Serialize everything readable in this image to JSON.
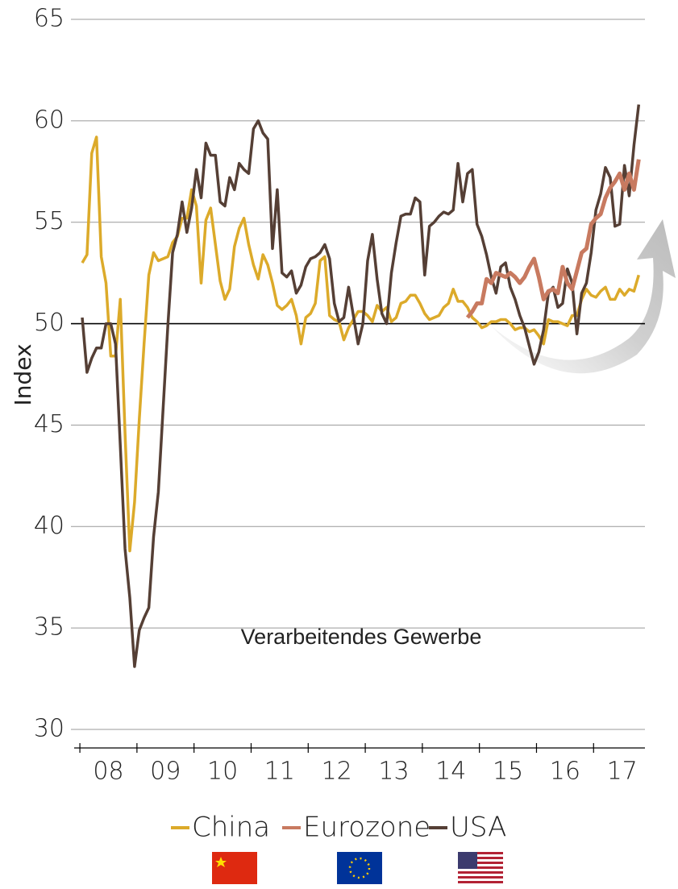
{
  "chart_data": {
    "type": "line",
    "y_label": "Index",
    "annotation": "Verarbeitendes Gewerbe",
    "x": [
      0,
      1,
      2,
      3,
      4,
      5,
      6,
      7,
      8,
      9,
      10,
      11,
      12,
      13,
      14,
      15,
      16,
      17,
      18,
      19,
      20,
      21,
      22,
      23,
      24,
      25,
      26,
      27,
      28,
      29,
      30,
      31,
      32,
      33,
      34,
      35,
      36,
      37,
      38,
      39,
      40,
      41,
      42,
      43,
      44,
      45,
      46,
      47,
      48,
      49,
      50,
      51,
      52,
      53,
      54,
      55,
      56,
      57,
      58,
      59,
      60,
      61,
      62,
      63,
      64,
      65,
      66,
      67,
      68,
      69,
      70,
      71,
      72,
      73,
      74,
      75,
      76,
      77,
      78,
      79,
      80,
      81,
      82,
      83,
      84,
      85,
      86,
      87,
      88,
      89,
      90,
      91,
      92,
      93,
      94,
      95,
      96,
      97,
      98,
      99,
      100,
      101,
      102,
      103,
      104,
      105,
      106,
      107,
      108,
      109,
      110,
      111,
      112,
      113,
      114,
      115,
      116,
      117
    ],
    "xlim": [
      -1.7,
      118.3
    ],
    "xticks": [
      -0.5,
      11.5,
      23.5,
      35.5,
      47.5,
      59.5,
      71.5,
      83.5,
      95.5,
      107.5
    ],
    "xtick_labels": [
      {
        "value": 5.5,
        "label": "08"
      },
      {
        "value": 17.5,
        "label": "09"
      },
      {
        "value": 29.5,
        "label": "10"
      },
      {
        "value": 41.5,
        "label": "11"
      },
      {
        "value": 53.5,
        "label": "12"
      },
      {
        "value": 65.5,
        "label": "13"
      },
      {
        "value": 77.5,
        "label": "14"
      },
      {
        "value": 89.5,
        "label": "15"
      },
      {
        "value": 101.5,
        "label": "16"
      },
      {
        "value": 113.5,
        "label": "17"
      }
    ],
    "ylim": [
      30,
      65
    ],
    "yticks": [
      30,
      35,
      40,
      45,
      50,
      55,
      60,
      65
    ],
    "grid": true,
    "reference_line": 50,
    "series": [
      {
        "name": "China",
        "color": "#dcaa2a",
        "values": [
          53.0,
          53.4,
          58.4,
          59.2,
          53.3,
          52.0,
          48.4,
          48.4,
          51.2,
          44.6,
          38.8,
          41.2,
          45.3,
          49.0,
          52.4,
          53.5,
          53.1,
          53.2,
          53.3,
          54.0,
          54.3,
          55.2,
          55.2,
          56.6,
          55.8,
          52.0,
          55.1,
          55.7,
          53.9,
          52.1,
          51.2,
          51.7,
          53.8,
          54.7,
          55.2,
          53.9,
          52.9,
          52.2,
          53.4,
          52.9,
          52.0,
          50.9,
          50.7,
          50.9,
          51.2,
          50.4,
          49.0,
          50.3,
          50.5,
          51.0,
          53.1,
          53.3,
          50.4,
          50.2,
          50.1,
          49.2,
          49.8,
          50.2,
          50.6,
          50.6,
          50.4,
          50.1,
          50.9,
          50.6,
          50.8,
          50.1,
          50.3,
          51.0,
          51.1,
          51.4,
          51.4,
          51.0,
          50.5,
          50.2,
          50.3,
          50.4,
          50.8,
          51.0,
          51.7,
          51.1,
          51.1,
          50.8,
          50.3,
          50.1,
          49.8,
          49.9,
          50.1,
          50.1,
          50.2,
          50.2,
          50.0,
          49.7,
          49.8,
          49.8,
          49.6,
          49.7,
          49.4,
          49.0,
          50.2,
          50.1,
          50.1,
          50.0,
          49.9,
          50.4,
          50.4,
          51.2,
          51.7,
          51.4,
          51.3,
          51.6,
          51.8,
          51.2,
          51.2,
          51.7,
          51.4,
          51.7,
          51.6,
          52.4
        ]
      },
      {
        "name": "Eurozone",
        "color": "#c87a60",
        "values": [
          null,
          null,
          null,
          null,
          null,
          null,
          null,
          null,
          null,
          null,
          null,
          null,
          null,
          null,
          null,
          null,
          null,
          null,
          null,
          null,
          null,
          null,
          null,
          null,
          null,
          null,
          null,
          null,
          null,
          null,
          null,
          null,
          null,
          null,
          null,
          null,
          null,
          null,
          null,
          null,
          null,
          null,
          null,
          null,
          null,
          null,
          null,
          null,
          null,
          null,
          null,
          null,
          null,
          null,
          null,
          null,
          null,
          null,
          null,
          null,
          null,
          null,
          null,
          null,
          null,
          null,
          null,
          null,
          null,
          null,
          null,
          null,
          null,
          null,
          null,
          null,
          null,
          null,
          null,
          null,
          null,
          50.3,
          50.6,
          51.0,
          51.0,
          52.2,
          52.0,
          52.5,
          52.4,
          52.3,
          52.5,
          52.3,
          52.0,
          52.3,
          52.8,
          53.2,
          52.3,
          51.2,
          51.6,
          51.7,
          51.5,
          52.8,
          52.0,
          51.7,
          52.6,
          53.5,
          53.7,
          54.9,
          55.2,
          55.4,
          56.2,
          56.7,
          57.0,
          57.4,
          56.6,
          57.4,
          56.6,
          58.1
        ]
      },
      {
        "name": "USA",
        "color": "#553f35",
        "values": [
          50.3,
          47.6,
          48.3,
          48.8,
          48.8,
          50.0,
          50.0,
          49.0,
          44.0,
          38.9,
          36.5,
          33.1,
          34.9,
          35.5,
          36.0,
          39.5,
          41.7,
          45.8,
          49.9,
          53.5,
          54.4,
          56.0,
          54.5,
          55.7,
          57.6,
          56.2,
          58.9,
          58.3,
          58.3,
          56.0,
          55.8,
          57.2,
          56.6,
          57.9,
          57.6,
          57.4,
          59.6,
          60.0,
          59.4,
          59.1,
          53.7,
          56.6,
          52.5,
          52.3,
          52.6,
          51.5,
          51.9,
          52.8,
          53.2,
          53.3,
          53.5,
          53.9,
          53.2,
          51.0,
          50.1,
          50.3,
          51.8,
          50.4,
          49.0,
          50.0,
          53.1,
          54.4,
          52.2,
          50.5,
          50.0,
          52.5,
          54.0,
          55.3,
          55.4,
          55.4,
          56.2,
          56.0,
          52.4,
          54.8,
          55.0,
          55.3,
          55.5,
          55.4,
          55.6,
          57.9,
          56.0,
          57.4,
          57.6,
          54.9,
          54.3,
          53.4,
          52.3,
          51.5,
          52.8,
          53.0,
          51.8,
          51.2,
          50.4,
          49.8,
          48.9,
          48.0,
          48.6,
          49.7,
          51.5,
          51.8,
          50.8,
          51.0,
          52.7,
          52.0,
          49.5,
          51.5,
          52.0,
          53.5,
          55.6,
          56.4,
          57.7,
          57.2,
          54.8,
          54.9,
          57.8,
          56.3,
          58.8,
          60.8
        ]
      }
    ]
  }
}
